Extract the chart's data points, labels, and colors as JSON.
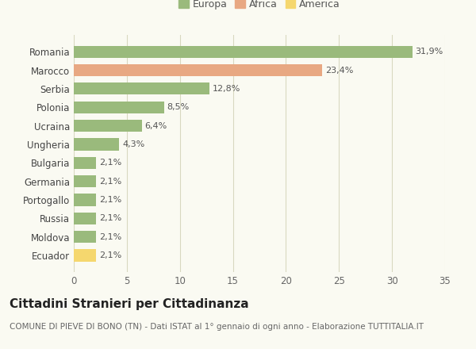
{
  "categories": [
    "Ecuador",
    "Moldova",
    "Russia",
    "Portogallo",
    "Germania",
    "Bulgaria",
    "Ungheria",
    "Ucraina",
    "Polonia",
    "Serbia",
    "Marocco",
    "Romania"
  ],
  "values": [
    2.1,
    2.1,
    2.1,
    2.1,
    2.1,
    2.1,
    4.3,
    6.4,
    8.5,
    12.8,
    23.4,
    31.9
  ],
  "labels": [
    "2,1%",
    "2,1%",
    "2,1%",
    "2,1%",
    "2,1%",
    "2,1%",
    "4,3%",
    "6,4%",
    "8,5%",
    "12,8%",
    "23,4%",
    "31,9%"
  ],
  "colors": [
    "#f5d76e",
    "#9aba7c",
    "#9aba7c",
    "#9aba7c",
    "#9aba7c",
    "#9aba7c",
    "#9aba7c",
    "#9aba7c",
    "#9aba7c",
    "#9aba7c",
    "#e8a882",
    "#9aba7c"
  ],
  "legend_labels": [
    "Europa",
    "Africa",
    "America"
  ],
  "legend_colors": [
    "#9aba7c",
    "#e8a882",
    "#f5d76e"
  ],
  "title": "Cittadini Stranieri per Cittadinanza",
  "subtitle": "COMUNE DI PIEVE DI BONO (TN) - Dati ISTAT al 1° gennaio di ogni anno - Elaborazione TUTTITALIA.IT",
  "xlim": [
    0,
    35
  ],
  "xticks": [
    0,
    5,
    10,
    15,
    20,
    25,
    30,
    35
  ],
  "background_color": "#fafaf2",
  "grid_color": "#d8d8c0",
  "bar_height": 0.65,
  "title_fontsize": 11,
  "subtitle_fontsize": 7.5,
  "label_fontsize": 8,
  "tick_fontsize": 8.5,
  "legend_fontsize": 9
}
